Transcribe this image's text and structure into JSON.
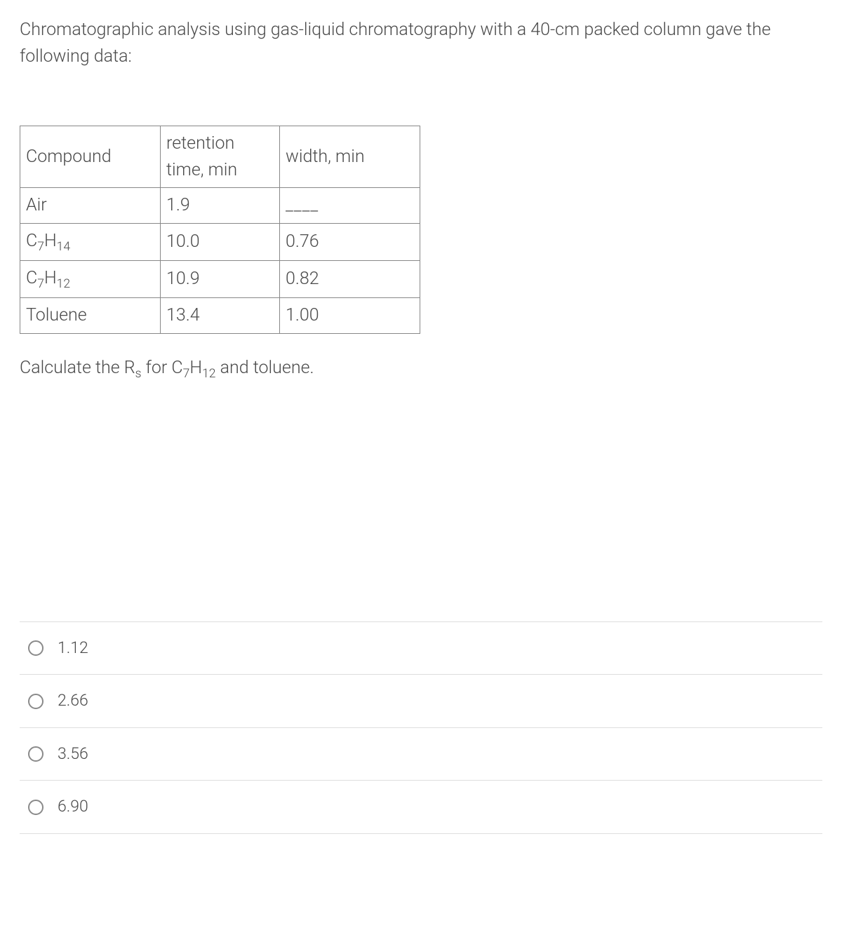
{
  "question": {
    "intro_line1": "Chromatographic analysis using gas-liquid chromatography with a 40-cm packed",
    "intro_line2": "column gave the following data:"
  },
  "table": {
    "header": {
      "compound": "Compound",
      "retention": "retention time, min",
      "width": "width, min"
    },
    "rows": [
      {
        "compound_text": "Air",
        "retention": "1.9",
        "width": "____",
        "is_formula": false
      },
      {
        "compound_prefix": "C",
        "sub1": "7",
        "mid": "H",
        "sub2": "14",
        "retention": "10.0",
        "width": "0.76",
        "is_formula": true
      },
      {
        "compound_prefix": "C",
        "sub1": "7",
        "mid": "H",
        "sub2": "12",
        "retention": "10.9",
        "width": "0.82",
        "is_formula": true
      },
      {
        "compound_text": "Toluene",
        "retention": "13.4",
        "width": "1.00",
        "is_formula": false
      }
    ]
  },
  "calculate": {
    "prefix": "Calculate the R",
    "sub_s": "s",
    "mid": " for C",
    "sub_7": "7",
    "h": "H",
    "sub_12": "12",
    "suffix": " and toluene."
  },
  "options": [
    {
      "label": "1.12"
    },
    {
      "label": "2.66"
    },
    {
      "label": "3.56"
    },
    {
      "label": "6.90"
    }
  ],
  "styling": {
    "text_color": "#4a4a4a",
    "border_color": "#888888",
    "divider_color": "#dedede",
    "radio_border": "#8a8a8a",
    "background": "#ffffff",
    "body_fontsize": 25,
    "option_fontsize": 23
  }
}
